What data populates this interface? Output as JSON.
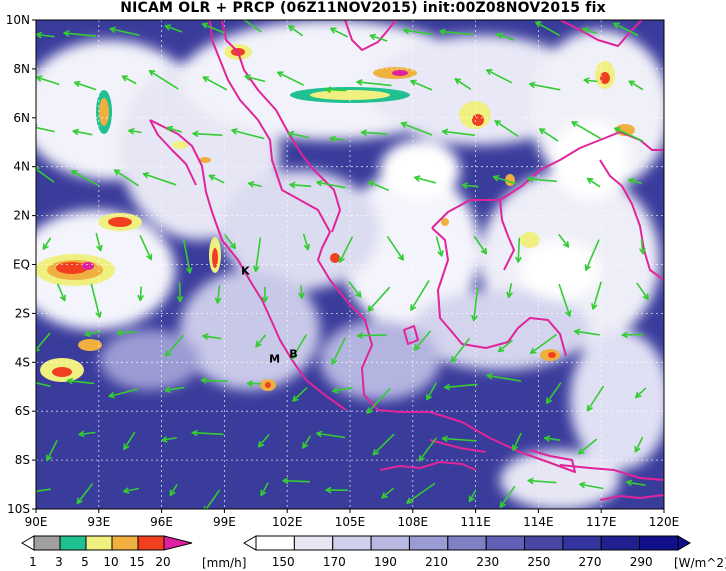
{
  "title": "NICAM OLR + PRCP (06Z11NOV2015) init:00Z08NOV2015 fix",
  "map": {
    "lon_range": [
      90,
      120
    ],
    "lat_range": [
      -10,
      10
    ],
    "x_ticks": [
      "90E",
      "93E",
      "96E",
      "99E",
      "102E",
      "105E",
      "108E",
      "111E",
      "114E",
      "117E",
      "120E"
    ],
    "y_ticks": [
      "10N",
      "8N",
      "6N",
      "4N",
      "2N",
      "EQ",
      "2S",
      "4S",
      "6S",
      "8S",
      "10S"
    ],
    "places": [
      {
        "label": "K",
        "lon": 100.0,
        "lat": -0.4
      },
      {
        "label": "B",
        "lon": 102.3,
        "lat": -3.8
      },
      {
        "label": "M",
        "lon": 101.4,
        "lat": -4.0
      }
    ],
    "colors": {
      "ocean": "#3a3c9c",
      "coast": "#e0259a",
      "wind": "#33cc33",
      "grid": "#ffffff"
    }
  },
  "prcp_colorbar": {
    "labels": [
      "1",
      "3",
      "5",
      "10",
      "15",
      "20"
    ],
    "unit": "[mm/h]",
    "colors": [
      "#a0a0a0",
      "#20c090",
      "#f0f080",
      "#f0b040",
      "#f04020",
      "#e020a0"
    ]
  },
  "olr_colorbar": {
    "labels": [
      "150",
      "170",
      "190",
      "210",
      "230",
      "250",
      "270",
      "290"
    ],
    "unit": "[W/m^2]",
    "colors": [
      "#ffffff",
      "#e8e8f4",
      "#d0d0ec",
      "#b8b8e0",
      "#9c9cd4",
      "#8080c4",
      "#6060b4",
      "#4848a4",
      "#3434a0",
      "#202090",
      "#10108a"
    ]
  }
}
